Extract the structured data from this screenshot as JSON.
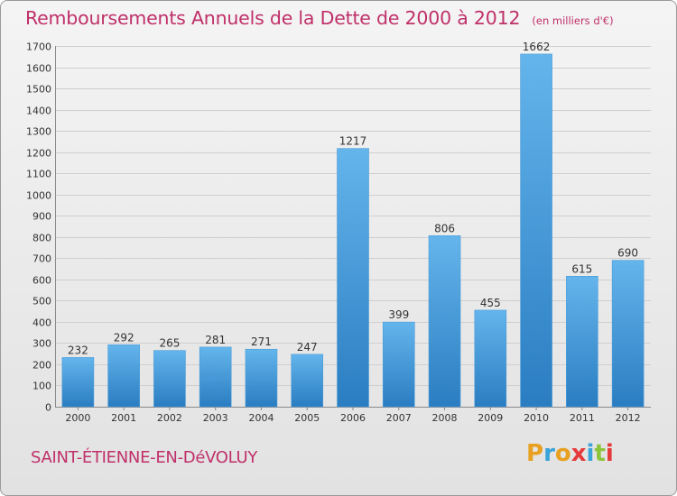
{
  "title": "Remboursements Annuels de la Dette de 2000 à 2012",
  "subtitle": "(en milliers d'€)",
  "commune": "SAINT-ÉTIENNE-EN-DéVOLUY",
  "logo": {
    "letters": [
      "P",
      "r",
      "o",
      "x",
      "i",
      "t",
      "i"
    ],
    "colors": [
      "#e8a020",
      "#3aa3d8",
      "#e8a020",
      "#e63a3a",
      "#3aa3d8",
      "#8cc43c",
      "#e63a3a"
    ]
  },
  "colors": {
    "bar_light": "#64b5ec",
    "bar_dark": "#2a7dc1",
    "grid": "#cfcfcf",
    "text_accent": "#c0306a"
  },
  "chart_data": {
    "type": "bar",
    "categories": [
      "2000",
      "2001",
      "2002",
      "2003",
      "2004",
      "2005",
      "2006",
      "2007",
      "2008",
      "2009",
      "2010",
      "2011",
      "2012"
    ],
    "values": [
      232,
      292,
      265,
      281,
      271,
      247,
      1217,
      399,
      806,
      455,
      1662,
      615,
      690
    ],
    "ylim": [
      0,
      1700
    ],
    "yticks": [
      0,
      100,
      200,
      300,
      400,
      500,
      600,
      700,
      800,
      900,
      1000,
      1100,
      1200,
      1300,
      1400,
      1500,
      1600,
      1700
    ],
    "grid": true,
    "xlabel": "",
    "ylabel": ""
  }
}
